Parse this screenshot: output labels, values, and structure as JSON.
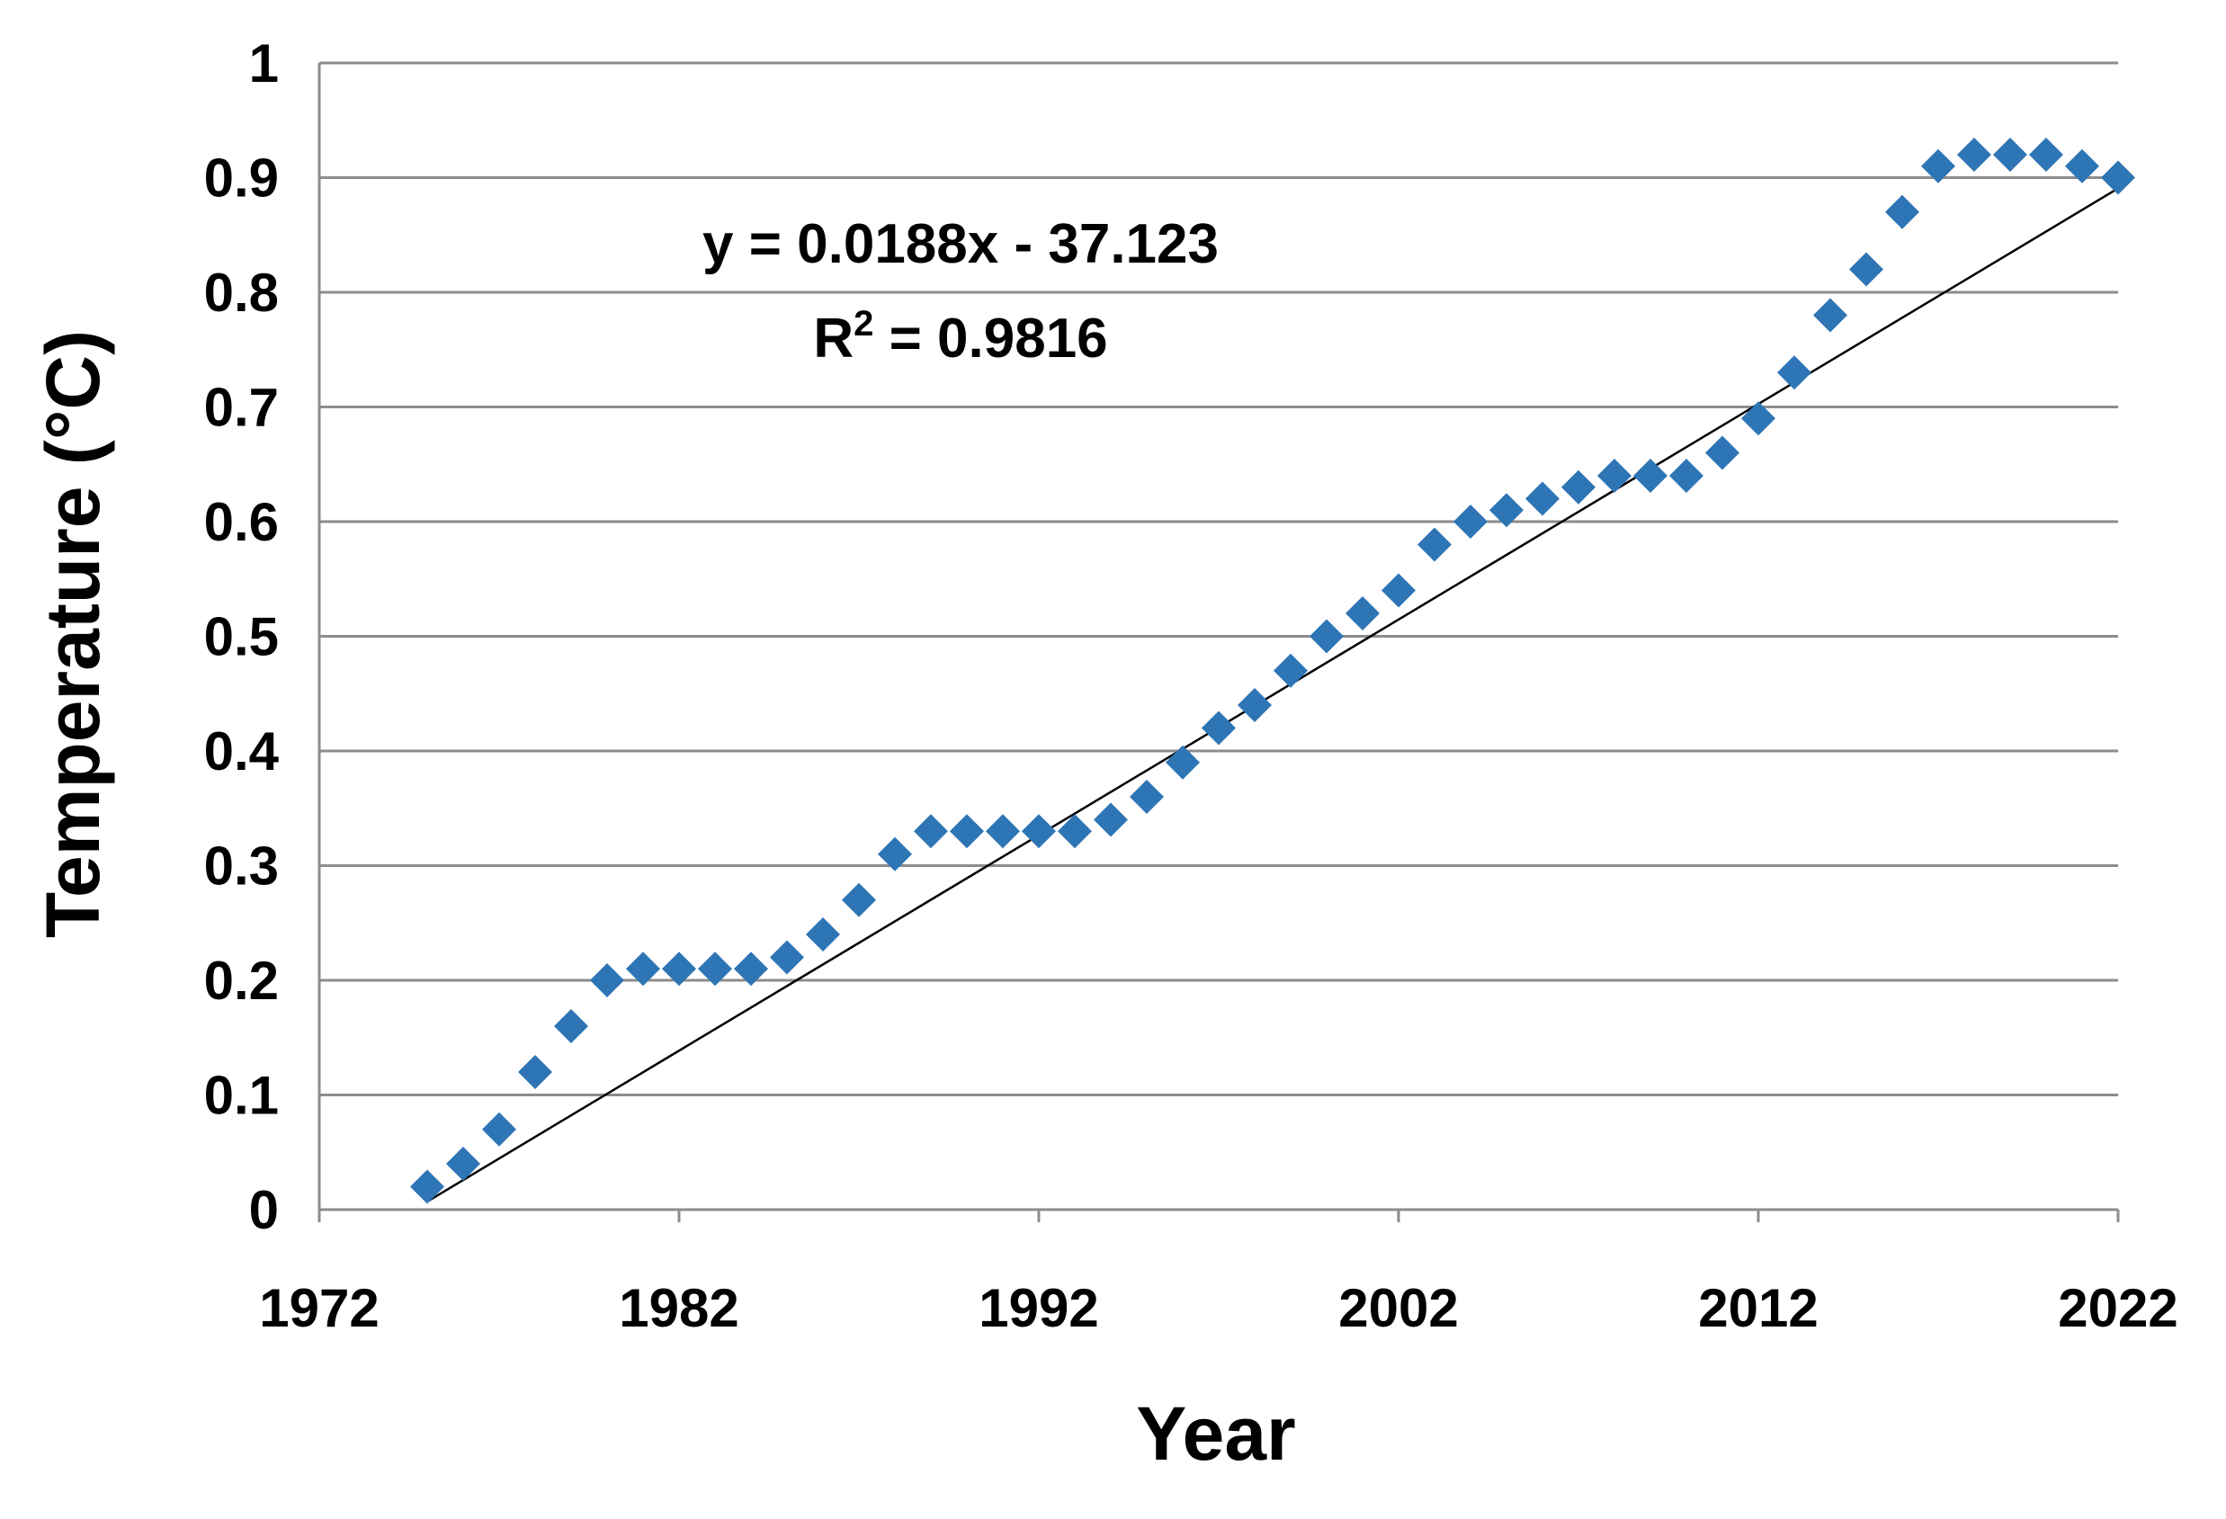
{
  "chart_data": {
    "type": "scatter",
    "title": "",
    "xlabel": "Year",
    "ylabel": "Temperature (°C)",
    "xlim": [
      1972,
      2022
    ],
    "ylim": [
      0,
      1
    ],
    "x_ticks": [
      "1972",
      "1982",
      "1992",
      "2002",
      "2012",
      "2022"
    ],
    "y_ticks": [
      "0",
      "0.1",
      "0.2",
      "0.3",
      "0.4",
      "0.5",
      "0.6",
      "0.7",
      "0.8",
      "0.9",
      "1"
    ],
    "grid": true,
    "legend": "none",
    "marker_color": "#2E75B6",
    "trendline": {
      "equation_label": "y = 0.0188x - 37.123",
      "r2_prefix": "R",
      "r2_superscript": "2",
      "r2_suffix": " = 0.9816",
      "slope": 0.0188,
      "intercept": -37.123,
      "x_range": [
        1975,
        2022
      ]
    },
    "points": [
      {
        "x": 1975,
        "y": 0.02
      },
      {
        "x": 1976,
        "y": 0.04
      },
      {
        "x": 1977,
        "y": 0.07
      },
      {
        "x": 1978,
        "y": 0.12
      },
      {
        "x": 1979,
        "y": 0.16
      },
      {
        "x": 1980,
        "y": 0.2
      },
      {
        "x": 1981,
        "y": 0.21
      },
      {
        "x": 1982,
        "y": 0.21
      },
      {
        "x": 1983,
        "y": 0.21
      },
      {
        "x": 1984,
        "y": 0.21
      },
      {
        "x": 1985,
        "y": 0.22
      },
      {
        "x": 1986,
        "y": 0.24
      },
      {
        "x": 1987,
        "y": 0.27
      },
      {
        "x": 1988,
        "y": 0.31
      },
      {
        "x": 1989,
        "y": 0.33
      },
      {
        "x": 1990,
        "y": 0.33
      },
      {
        "x": 1991,
        "y": 0.33
      },
      {
        "x": 1992,
        "y": 0.33
      },
      {
        "x": 1993,
        "y": 0.33
      },
      {
        "x": 1994,
        "y": 0.34
      },
      {
        "x": 1995,
        "y": 0.36
      },
      {
        "x": 1996,
        "y": 0.39
      },
      {
        "x": 1997,
        "y": 0.42
      },
      {
        "x": 1998,
        "y": 0.44
      },
      {
        "x": 1999,
        "y": 0.47
      },
      {
        "x": 2000,
        "y": 0.5
      },
      {
        "x": 2001,
        "y": 0.52
      },
      {
        "x": 2002,
        "y": 0.54
      },
      {
        "x": 2003,
        "y": 0.58
      },
      {
        "x": 2004,
        "y": 0.6
      },
      {
        "x": 2005,
        "y": 0.61
      },
      {
        "x": 2006,
        "y": 0.62
      },
      {
        "x": 2007,
        "y": 0.63
      },
      {
        "x": 2008,
        "y": 0.64
      },
      {
        "x": 2009,
        "y": 0.64
      },
      {
        "x": 2010,
        "y": 0.64
      },
      {
        "x": 2011,
        "y": 0.66
      },
      {
        "x": 2012,
        "y": 0.69
      },
      {
        "x": 2013,
        "y": 0.73
      },
      {
        "x": 2014,
        "y": 0.78
      },
      {
        "x": 2015,
        "y": 0.82
      },
      {
        "x": 2016,
        "y": 0.87
      },
      {
        "x": 2017,
        "y": 0.91
      },
      {
        "x": 2018,
        "y": 0.92
      },
      {
        "x": 2019,
        "y": 0.92
      },
      {
        "x": 2020,
        "y": 0.92
      },
      {
        "x": 2021,
        "y": 0.91
      },
      {
        "x": 2022,
        "y": 0.9
      }
    ]
  }
}
